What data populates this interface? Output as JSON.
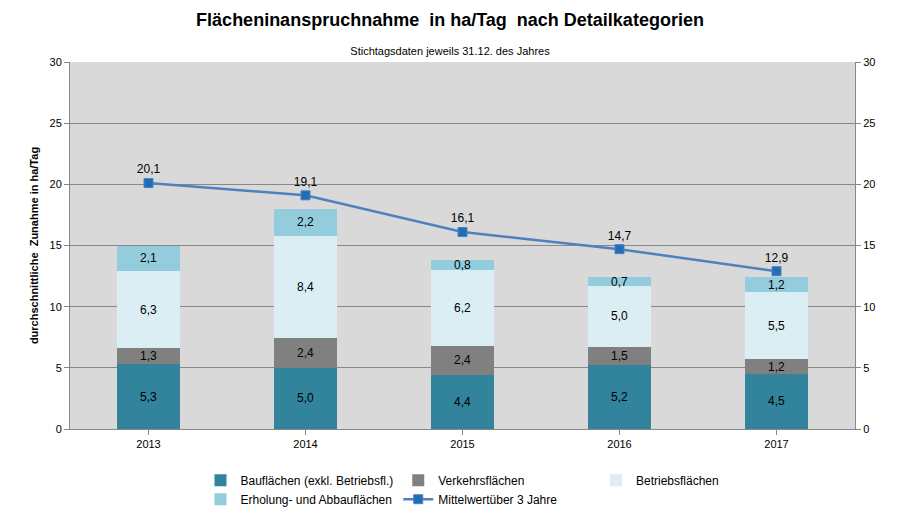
{
  "chart_data": {
    "type": "bar",
    "title": "Flächeninanspruchnahme  in ha/Tag  nach Detailkategorien",
    "subtitle": "Stichtagsdaten jeweils 31.12. des Jahres",
    "y_label": "durchschnittliche  Zunahme in ha/Tag",
    "categories": [
      "2013",
      "2014",
      "2015",
      "2016",
      "2017"
    ],
    "stacked": true,
    "data_labels": true,
    "grid": true,
    "legend": "bottom",
    "ylim": [
      0,
      30
    ],
    "yticks": [
      0,
      5,
      10,
      15,
      20,
      25,
      30
    ],
    "y2lim": [
      0,
      30
    ],
    "y2ticks": [
      0,
      5,
      10,
      15,
      20,
      25,
      30
    ],
    "series": [
      {
        "name": "Bauflächen (exkl. Betriebsfl.)",
        "type": "bar",
        "color": "#31849b",
        "values": [
          5.3,
          5.0,
          4.4,
          5.2,
          4.5
        ],
        "value_labels": [
          "5,3",
          "5,0",
          "4,4",
          "5,2",
          "4,5"
        ]
      },
      {
        "name": "Verkehrsflächen",
        "type": "bar",
        "color": "#808080",
        "values": [
          1.3,
          2.4,
          2.4,
          1.5,
          1.2
        ],
        "value_labels": [
          "1,3",
          "2,4",
          "2,4",
          "1,5",
          "1,2"
        ]
      },
      {
        "name": "Betriebsflächen",
        "type": "bar",
        "color": "#dbeef4",
        "values": [
          6.3,
          8.4,
          6.2,
          5.0,
          5.5
        ],
        "value_labels": [
          "6,3",
          "8,4",
          "6,2",
          "5,0",
          "5,5"
        ]
      },
      {
        "name": "Erholung- und Abbauflächen",
        "type": "bar",
        "color": "#93cddd",
        "values": [
          2.1,
          2.2,
          0.8,
          0.7,
          1.2
        ],
        "value_labels": [
          "2,1",
          "2,2",
          "0,8",
          "0,7",
          "1,2"
        ]
      },
      {
        "name": "Mittelwertüber 3 Jahre",
        "type": "line",
        "axis": "y2",
        "color": "#4f81bd",
        "marker": "square",
        "values": [
          20.1,
          19.1,
          16.1,
          14.7,
          12.9
        ],
        "value_labels": [
          "20,1",
          "19,1",
          "16,1",
          "14,7",
          "12,9"
        ]
      }
    ]
  }
}
